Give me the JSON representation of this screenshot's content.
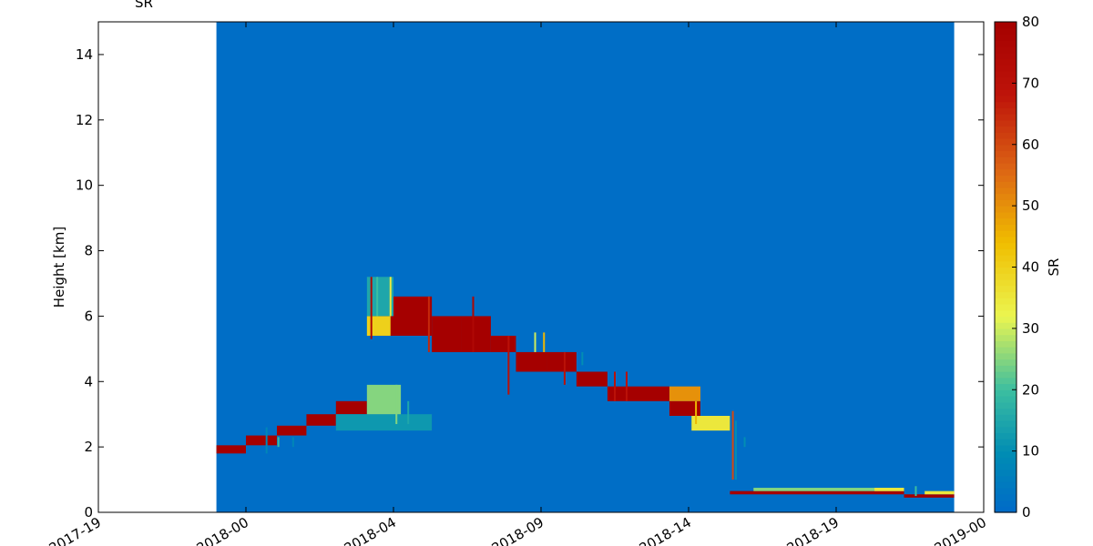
{
  "chart_data": {
    "type": "heatmap",
    "title": "SR",
    "ylabel": "Height [km]",
    "colorbar_label": "SR",
    "x_tick_labels": [
      "2017-19",
      "2018-00",
      "2018-04",
      "2018-09",
      "2018-14",
      "2018-19",
      "2019-00"
    ],
    "x_ticks": [
      -5,
      0,
      5,
      10,
      15,
      20,
      25
    ],
    "xlim": [
      -5,
      25
    ],
    "data_xlim": [
      -1,
      24
    ],
    "y_ticks": [
      0,
      2,
      4,
      6,
      8,
      10,
      12,
      14
    ],
    "ylim": [
      0,
      15
    ],
    "data_ylim": [
      0,
      15
    ],
    "clim": [
      0,
      80
    ],
    "colorbar_ticks": [
      0,
      10,
      20,
      30,
      40,
      50,
      60,
      70,
      80
    ],
    "colormap": "jet",
    "background_value": 1,
    "background_color": "#006ac8",
    "layers": [
      {
        "x0": -1,
        "x1": 0,
        "y0": 1.8,
        "y1": 2.05,
        "value": 80
      },
      {
        "x0": 0,
        "x1": 1.05,
        "y0": 2.05,
        "y1": 2.35,
        "value": 80
      },
      {
        "x0": 1.05,
        "x1": 2.05,
        "y0": 2.35,
        "y1": 2.65,
        "value": 80
      },
      {
        "x0": 2.05,
        "x1": 3.05,
        "y0": 2.65,
        "y1": 3.0,
        "value": 80
      },
      {
        "x0": 3.05,
        "x1": 4.1,
        "y0": 3.0,
        "y1": 3.4,
        "value": 80
      },
      {
        "x0": 4.25,
        "x1": 6.3,
        "y0": 5.4,
        "y1": 6.6,
        "value": 80
      },
      {
        "x0": 6.3,
        "x1": 7.3,
        "y0": 4.9,
        "y1": 6.0,
        "value": 80
      },
      {
        "x0": 7.3,
        "x1": 8.3,
        "y0": 4.9,
        "y1": 6.0,
        "value": 80
      },
      {
        "x0": 8.3,
        "x1": 9.15,
        "y0": 4.9,
        "y1": 5.4,
        "value": 80
      },
      {
        "x0": 9.15,
        "x1": 10.2,
        "y0": 4.3,
        "y1": 4.9,
        "value": 80
      },
      {
        "x0": 10.2,
        "x1": 11.2,
        "y0": 4.3,
        "y1": 4.9,
        "value": 80
      },
      {
        "x0": 11.2,
        "x1": 12.25,
        "y0": 3.85,
        "y1": 4.3,
        "value": 80
      },
      {
        "x0": 12.25,
        "x1": 14.35,
        "y0": 3.4,
        "y1": 3.85,
        "value": 80
      },
      {
        "x0": 14.35,
        "x1": 15.4,
        "y0": 2.95,
        "y1": 3.4,
        "value": 80
      },
      {
        "x0": 16.4,
        "x1": 22.3,
        "y0": 0.55,
        "y1": 0.65,
        "value": 80
      },
      {
        "x0": 22.3,
        "x1": 24,
        "y0": 0.45,
        "y1": 0.55,
        "value": 80
      },
      {
        "x0": 3.05,
        "x1": 6.3,
        "y0": 2.5,
        "y1": 3.0,
        "value": 12
      },
      {
        "x0": 4.1,
        "x1": 5.25,
        "y0": 3.0,
        "y1": 3.9,
        "value": 25
      },
      {
        "x0": 4.1,
        "x1": 4.9,
        "y0": 5.4,
        "y1": 6.0,
        "value": 40
      },
      {
        "x0": 4.1,
        "x1": 5.0,
        "y0": 6.0,
        "y1": 7.2,
        "value": 15
      },
      {
        "x0": 14.35,
        "x1": 15.4,
        "y0": 3.4,
        "y1": 3.85,
        "value": 50
      },
      {
        "x0": 15.1,
        "x1": 16.4,
        "y0": 2.5,
        "y1": 2.95,
        "value": 35
      },
      {
        "x0": 17.2,
        "x1": 22.3,
        "y0": 0.65,
        "y1": 0.75,
        "value": 25
      },
      {
        "x0": 21.3,
        "x1": 22.3,
        "y0": 0.65,
        "y1": 0.75,
        "value": 35
      },
      {
        "x0": 23.0,
        "x1": 24,
        "y0": 0.55,
        "y1": 0.65,
        "value": 35
      }
    ],
    "streaks": [
      {
        "x": 0.7,
        "y0": 1.8,
        "y1": 2.6,
        "value": 8
      },
      {
        "x": 1.1,
        "y0": 2.0,
        "y1": 2.3,
        "value": 20
      },
      {
        "x": 1.6,
        "y0": 2.0,
        "y1": 2.3,
        "value": 8
      },
      {
        "x": 4.25,
        "y0": 5.3,
        "y1": 7.2,
        "value": 75
      },
      {
        "x": 4.45,
        "y0": 6.0,
        "y1": 7.2,
        "value": 20
      },
      {
        "x": 4.9,
        "y0": 6.0,
        "y1": 7.2,
        "value": 35
      },
      {
        "x": 5.1,
        "y0": 2.7,
        "y1": 3.9,
        "value": 25
      },
      {
        "x": 5.5,
        "y0": 2.7,
        "y1": 3.4,
        "value": 15
      },
      {
        "x": 6.2,
        "y0": 4.9,
        "y1": 6.6,
        "value": 65
      },
      {
        "x": 7.7,
        "y0": 4.9,
        "y1": 6.6,
        "value": 75
      },
      {
        "x": 8.9,
        "y0": 3.6,
        "y1": 5.4,
        "value": 70
      },
      {
        "x": 9.8,
        "y0": 4.9,
        "y1": 5.5,
        "value": 30
      },
      {
        "x": 10.1,
        "y0": 4.9,
        "y1": 5.5,
        "value": 45
      },
      {
        "x": 10.8,
        "y0": 3.9,
        "y1": 4.9,
        "value": 70
      },
      {
        "x": 11.4,
        "y0": 4.5,
        "y1": 4.9,
        "value": 10
      },
      {
        "x": 12.5,
        "y0": 3.4,
        "y1": 4.3,
        "value": 70
      },
      {
        "x": 12.9,
        "y0": 3.4,
        "y1": 4.3,
        "value": 70
      },
      {
        "x": 15.25,
        "y0": 2.7,
        "y1": 3.4,
        "value": 45
      },
      {
        "x": 16.5,
        "y0": 1.0,
        "y1": 3.1,
        "value": 60
      },
      {
        "x": 16.6,
        "y0": 1.0,
        "y1": 2.8,
        "value": 10
      },
      {
        "x": 16.9,
        "y0": 2.0,
        "y1": 2.3,
        "value": 10
      },
      {
        "x": 22.7,
        "y0": 0.5,
        "y1": 0.8,
        "value": 20
      }
    ]
  }
}
